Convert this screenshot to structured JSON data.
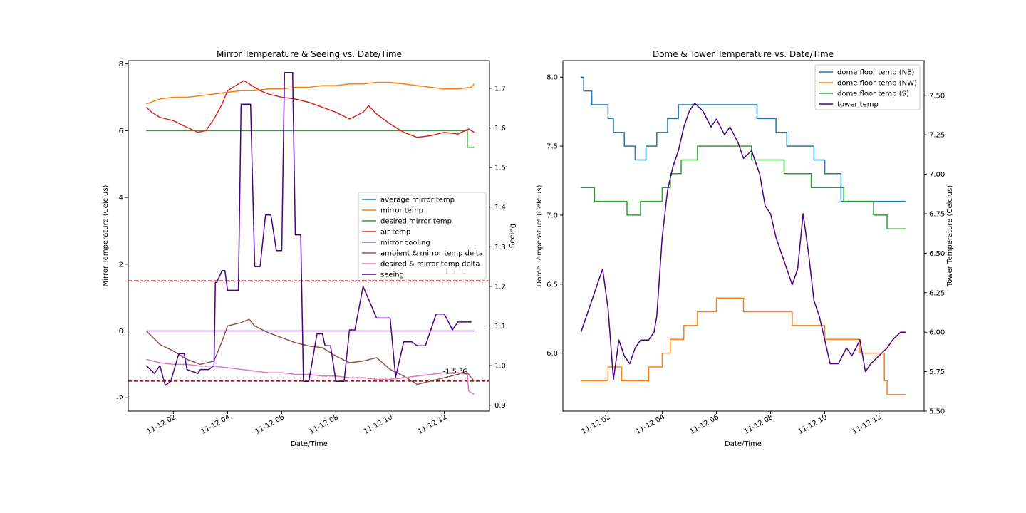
{
  "chart_data": [
    {
      "type": "line",
      "title": "Mirror Temperature & Seeing vs. Date/Time",
      "xlabel": "Date/Time",
      "ylabel": "Mirror Temperature (Celcius)",
      "y2label": "Seeing",
      "xlim": [
        "2023-11-12 00:20",
        "2023-11-12 13:40"
      ],
      "ylim": [
        -2.4,
        8.1
      ],
      "y2lim": [
        0.885,
        1.77
      ],
      "xticks": [
        "11-12 02",
        "11-12 04",
        "11-12 06",
        "11-12 08",
        "11-12 10",
        "11-12 12"
      ],
      "xtick_hours": [
        2,
        4,
        6,
        8,
        10,
        12
      ],
      "yticks": [
        -2,
        0,
        2,
        4,
        6,
        8
      ],
      "y2ticks": [
        0.9,
        1.0,
        1.1,
        1.2,
        1.3,
        1.4,
        1.5,
        1.6,
        1.7
      ],
      "legend_placement": "center-right",
      "grid": false,
      "annotations": [
        {
          "text": "1.5 °C",
          "x": 12.4,
          "y": 1.72
        },
        {
          "text": "-1.5 °C",
          "x": 12.4,
          "y": -1.28
        }
      ],
      "hlines": [
        {
          "y": 1.5,
          "color": "#8b0000",
          "style": "dashed"
        },
        {
          "y": -1.5,
          "color": "#8b0000",
          "style": "dashed"
        }
      ],
      "series": [
        {
          "name": "average mirror temp",
          "color": "#1f77b4",
          "axis": "left",
          "x": [
            1.0,
            13.0
          ],
          "values": [
            null,
            null
          ]
        },
        {
          "name": "mirror temp",
          "color": "#ff7f0e",
          "axis": "left",
          "x": [
            1.0,
            1.5,
            2.0,
            2.5,
            3.0,
            3.5,
            4.0,
            4.5,
            5.0,
            5.5,
            6.0,
            6.5,
            7.0,
            7.5,
            8.0,
            8.5,
            9.0,
            9.5,
            10.0,
            10.5,
            11.0,
            11.5,
            12.0,
            12.5,
            13.0,
            13.1
          ],
          "values": [
            6.8,
            6.95,
            7.0,
            7.0,
            7.05,
            7.1,
            7.15,
            7.2,
            7.2,
            7.25,
            7.25,
            7.3,
            7.3,
            7.35,
            7.35,
            7.4,
            7.4,
            7.45,
            7.45,
            7.4,
            7.35,
            7.3,
            7.25,
            7.25,
            7.3,
            7.4
          ]
        },
        {
          "name": "desired mirror temp",
          "color": "#2ca02c",
          "axis": "left",
          "x": [
            1.0,
            12.85,
            12.85,
            13.1
          ],
          "values": [
            6.0,
            6.0,
            5.5,
            5.5
          ]
        },
        {
          "name": "air temp",
          "color": "#d62728",
          "axis": "left",
          "x": [
            1.0,
            1.2,
            1.5,
            2.0,
            2.5,
            2.9,
            3.2,
            3.5,
            3.8,
            4.0,
            4.3,
            4.6,
            4.9,
            5.2,
            5.5,
            6.0,
            6.5,
            7.0,
            7.5,
            8.0,
            8.5,
            9.0,
            9.2,
            9.5,
            10.0,
            10.5,
            11.0,
            11.5,
            12.0,
            12.5,
            12.9,
            13.1
          ],
          "values": [
            6.7,
            6.55,
            6.4,
            6.3,
            6.1,
            5.95,
            6.0,
            6.35,
            6.8,
            7.2,
            7.35,
            7.5,
            7.35,
            7.2,
            7.1,
            7.0,
            6.95,
            6.85,
            6.7,
            6.55,
            6.35,
            6.55,
            6.75,
            6.5,
            6.2,
            5.95,
            5.8,
            5.85,
            5.95,
            5.9,
            6.05,
            5.95
          ]
        },
        {
          "name": "mirror cooling",
          "color": "#9467bd",
          "axis": "left",
          "x": [
            1.0,
            13.1
          ],
          "values": [
            0.0,
            0.0
          ]
        },
        {
          "name": "ambient & mirror temp delta",
          "color": "#8c564b",
          "axis": "left",
          "x": [
            1.0,
            1.5,
            2.0,
            2.5,
            3.0,
            3.5,
            3.8,
            4.0,
            4.5,
            4.8,
            5.0,
            5.5,
            6.0,
            6.5,
            7.0,
            7.5,
            8.0,
            8.5,
            9.0,
            9.5,
            10.0,
            10.5,
            11.0,
            11.5,
            12.0,
            12.5,
            12.8,
            13.1
          ],
          "values": [
            0.0,
            -0.4,
            -0.6,
            -0.85,
            -1.0,
            -0.9,
            -0.3,
            0.15,
            0.25,
            0.35,
            0.15,
            -0.05,
            -0.2,
            -0.35,
            -0.45,
            -0.5,
            -0.75,
            -0.95,
            -0.9,
            -0.8,
            -1.15,
            -1.35,
            -1.6,
            -1.5,
            -1.4,
            -1.3,
            -1.2,
            -1.5
          ]
        },
        {
          "name": "desired & mirror temp delta",
          "color": "#e377c2",
          "axis": "left",
          "x": [
            1.0,
            1.5,
            2.0,
            2.5,
            3.0,
            3.5,
            4.0,
            4.5,
            5.0,
            5.5,
            6.0,
            6.5,
            7.0,
            7.5,
            8.0,
            8.5,
            9.0,
            9.5,
            10.0,
            10.5,
            11.0,
            11.5,
            12.0,
            12.5,
            12.85,
            12.9,
            13.1
          ],
          "values": [
            -0.85,
            -0.95,
            -1.0,
            -1.0,
            -1.05,
            -1.05,
            -1.1,
            -1.15,
            -1.2,
            -1.25,
            -1.25,
            -1.3,
            -1.3,
            -1.35,
            -1.35,
            -1.4,
            -1.4,
            -1.45,
            -1.45,
            -1.4,
            -1.35,
            -1.3,
            -1.25,
            -1.25,
            -1.3,
            -1.8,
            -1.9
          ]
        },
        {
          "name": "seeing",
          "color": "#4b0082",
          "axis": "right",
          "x": [
            1.0,
            1.3,
            1.5,
            1.7,
            1.9,
            2.2,
            2.4,
            2.5,
            2.9,
            3.0,
            3.3,
            3.5,
            3.55,
            3.6,
            3.8,
            3.9,
            4.0,
            4.1,
            4.4,
            4.5,
            4.85,
            5.0,
            5.2,
            5.4,
            5.6,
            5.8,
            6.0,
            6.1,
            6.4,
            6.5,
            6.7,
            6.8,
            7.0,
            7.3,
            7.5,
            7.6,
            7.8,
            8.0,
            8.3,
            8.5,
            8.7,
            9.0,
            9.5,
            10.0,
            10.2,
            10.5,
            10.8,
            11.0,
            11.3,
            11.7,
            12.0,
            12.3,
            12.5,
            13.0
          ],
          "values": [
            1.0,
            0.98,
            1.0,
            0.95,
            0.96,
            1.03,
            1.03,
            0.99,
            0.98,
            0.99,
            0.99,
            1.0,
            1.21,
            1.21,
            1.24,
            1.24,
            1.19,
            1.19,
            1.19,
            1.66,
            1.66,
            1.25,
            1.25,
            1.38,
            1.38,
            1.29,
            1.29,
            1.74,
            1.74,
            1.33,
            1.33,
            0.96,
            0.96,
            1.08,
            1.08,
            1.05,
            1.05,
            0.96,
            0.96,
            1.09,
            1.09,
            1.2,
            1.12,
            1.12,
            0.97,
            1.06,
            1.06,
            1.05,
            1.05,
            1.13,
            1.13,
            1.09,
            1.11,
            1.11
          ]
        }
      ]
    },
    {
      "type": "line",
      "title": "Dome & Tower Temperature vs. Date/Time",
      "xlabel": "Date/Time",
      "ylabel": "Dome Temperature (Celcius)",
      "y2label": "Tower Temperature (Celcius)",
      "xlim": [
        "2023-11-12 00:20",
        "2023-11-12 13:40"
      ],
      "ylim": [
        5.58,
        8.12
      ],
      "y2lim": [
        5.5,
        7.72
      ],
      "xticks": [
        "11-12 02",
        "11-12 04",
        "11-12 06",
        "11-12 08",
        "11-12 10",
        "11-12 12"
      ],
      "xtick_hours": [
        2,
        4,
        6,
        8,
        10,
        12
      ],
      "yticks": [
        6.0,
        6.5,
        7.0,
        7.5,
        8.0
      ],
      "y2ticks": [
        5.5,
        5.75,
        6.0,
        6.25,
        6.5,
        6.75,
        7.0,
        7.25,
        7.5
      ],
      "legend_placement": "upper-right",
      "grid": false,
      "series": [
        {
          "name": "dome floor temp (NE)",
          "color": "#1f77b4",
          "axis": "left",
          "x": [
            1.0,
            1.1,
            1.1,
            1.4,
            1.4,
            2.0,
            2.0,
            2.2,
            2.2,
            2.6,
            2.6,
            3.0,
            3.0,
            3.4,
            3.4,
            3.8,
            3.8,
            4.2,
            4.2,
            4.6,
            4.6,
            7.5,
            7.5,
            8.2,
            8.2,
            8.6,
            8.6,
            9.6,
            9.6,
            10.0,
            10.0,
            10.6,
            10.6,
            13.0
          ],
          "values": [
            8.0,
            8.0,
            7.9,
            7.9,
            7.8,
            7.8,
            7.7,
            7.7,
            7.6,
            7.6,
            7.5,
            7.5,
            7.4,
            7.4,
            7.5,
            7.5,
            7.6,
            7.6,
            7.7,
            7.7,
            7.8,
            7.8,
            7.7,
            7.7,
            7.6,
            7.6,
            7.5,
            7.5,
            7.4,
            7.4,
            7.3,
            7.3,
            7.1,
            7.1
          ]
        },
        {
          "name": "dome floor temp (NW)",
          "color": "#ff7f0e",
          "axis": "left",
          "x": [
            1.0,
            2.0,
            2.0,
            2.5,
            2.5,
            3.0,
            3.0,
            3.5,
            3.5,
            4.0,
            4.0,
            4.3,
            4.3,
            4.8,
            4.8,
            5.3,
            5.3,
            6.0,
            6.0,
            7.0,
            7.0,
            8.8,
            8.8,
            10.0,
            10.0,
            11.3,
            11.3,
            12.2,
            12.2,
            12.3,
            12.3,
            13.0
          ],
          "values": [
            5.8,
            5.8,
            5.9,
            5.9,
            5.8,
            5.8,
            5.8,
            5.8,
            5.9,
            5.9,
            6.0,
            6.0,
            6.1,
            6.1,
            6.2,
            6.2,
            6.3,
            6.3,
            6.4,
            6.4,
            6.3,
            6.3,
            6.2,
            6.2,
            6.1,
            6.1,
            6.0,
            6.0,
            5.8,
            5.8,
            5.7,
            5.7
          ]
        },
        {
          "name": "dome floor temp (S)",
          "color": "#2ca02c",
          "axis": "left",
          "x": [
            1.0,
            1.5,
            1.5,
            2.7,
            2.7,
            3.2,
            3.2,
            4.0,
            4.0,
            4.3,
            4.3,
            4.7,
            4.7,
            5.3,
            5.3,
            7.3,
            7.3,
            8.5,
            8.5,
            9.5,
            9.5,
            10.7,
            10.7,
            11.8,
            11.8,
            12.3,
            12.3,
            13.0
          ],
          "values": [
            7.2,
            7.2,
            7.1,
            7.1,
            7.0,
            7.0,
            7.1,
            7.1,
            7.2,
            7.2,
            7.3,
            7.3,
            7.4,
            7.4,
            7.5,
            7.5,
            7.4,
            7.4,
            7.3,
            7.3,
            7.2,
            7.2,
            7.1,
            7.1,
            7.0,
            7.0,
            6.9,
            6.9
          ]
        },
        {
          "name": "tower temp",
          "color": "#4b0082",
          "axis": "right",
          "x": [
            1.0,
            1.2,
            1.5,
            1.8,
            2.0,
            2.2,
            2.4,
            2.6,
            2.8,
            3.0,
            3.2,
            3.5,
            3.7,
            3.8,
            4.0,
            4.2,
            4.4,
            4.6,
            4.8,
            5.0,
            5.2,
            5.5,
            5.8,
            6.0,
            6.3,
            6.5,
            6.8,
            7.0,
            7.3,
            7.6,
            7.8,
            8.0,
            8.2,
            8.4,
            8.6,
            8.8,
            9.0,
            9.2,
            9.4,
            9.6,
            9.8,
            10.0,
            10.2,
            10.5,
            10.8,
            11.0,
            11.3,
            11.5,
            11.7,
            12.0,
            12.3,
            12.5,
            12.8,
            13.0
          ],
          "values": [
            6.0,
            6.1,
            6.25,
            6.4,
            6.15,
            5.7,
            5.95,
            5.85,
            5.8,
            5.9,
            5.95,
            5.95,
            6.0,
            6.1,
            6.6,
            6.9,
            7.05,
            7.15,
            7.3,
            7.4,
            7.45,
            7.4,
            7.3,
            7.35,
            7.25,
            7.3,
            7.2,
            7.1,
            7.15,
            7.0,
            6.8,
            6.75,
            6.6,
            6.5,
            6.4,
            6.3,
            6.4,
            6.75,
            6.5,
            6.2,
            6.1,
            5.95,
            5.8,
            5.8,
            5.9,
            5.85,
            5.95,
            5.75,
            5.8,
            5.85,
            5.9,
            5.95,
            6.0,
            6.0
          ]
        }
      ]
    }
  ]
}
